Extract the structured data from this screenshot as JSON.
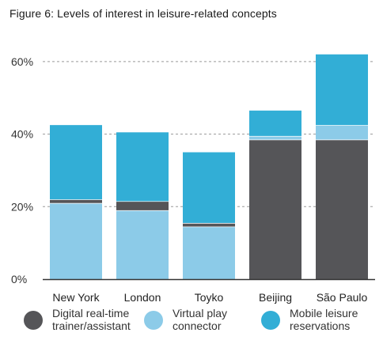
{
  "title": "Figure 6: Levels of interest in leisure-related concepts",
  "colors": {
    "digital": "#555558",
    "virtual": "#8ccbe8",
    "mobile": "#32aed6",
    "grid": "#9a9a9a",
    "axis": "#333333"
  },
  "chart_data": {
    "type": "bar",
    "stacked": true,
    "title": "Figure 6: Levels of interest in leisure-related concepts",
    "categories": [
      "New York",
      "London",
      "Toyko",
      "Beijing",
      "São Paulo"
    ],
    "series": [
      {
        "name": "Digital real-time trainer/assistant",
        "color": "#555558",
        "values": [
          1,
          2.5,
          1,
          38.5,
          38.5
        ]
      },
      {
        "name": "Virtual play connector",
        "color": "#8ccbe8",
        "values": [
          21,
          19,
          14.5,
          1,
          4
        ]
      },
      {
        "name": "Mobile leisure reservations",
        "color": "#32aed6",
        "values": [
          20.5,
          19,
          19.5,
          7,
          19.5
        ]
      }
    ],
    "stack_order": [
      "Virtual play connector",
      "Digital real-time trainer/assistant",
      "Mobile leisure reservations"
    ],
    "stack_order_per_category": [
      [
        "Virtual play connector",
        "Digital real-time trainer/assistant",
        "Mobile leisure reservations"
      ],
      [
        "Virtual play connector",
        "Digital real-time trainer/assistant",
        "Mobile leisure reservations"
      ],
      [
        "Virtual play connector",
        "Digital real-time trainer/assistant",
        "Mobile leisure reservations"
      ],
      [
        "Digital real-time trainer/assistant",
        "Virtual play connector",
        "Mobile leisure reservations"
      ],
      [
        "Digital real-time trainer/assistant",
        "Virtual play connector",
        "Mobile leisure reservations"
      ]
    ],
    "yticks": [
      "0%",
      "20%",
      "40%",
      "60%"
    ],
    "ytick_values": [
      0,
      20,
      40,
      60
    ],
    "ylim": [
      0,
      65
    ],
    "grid": true,
    "legend_position": "bottom"
  },
  "legend": [
    {
      "label": "Digital real-time\ntrainer/assistant",
      "color": "#555558",
      "name": "legend-digital"
    },
    {
      "label": "Virtual play\nconnector",
      "color": "#8ccbe8",
      "name": "legend-virtual"
    },
    {
      "label": "Mobile leisure\nreservations",
      "color": "#32aed6",
      "name": "legend-mobile"
    }
  ]
}
